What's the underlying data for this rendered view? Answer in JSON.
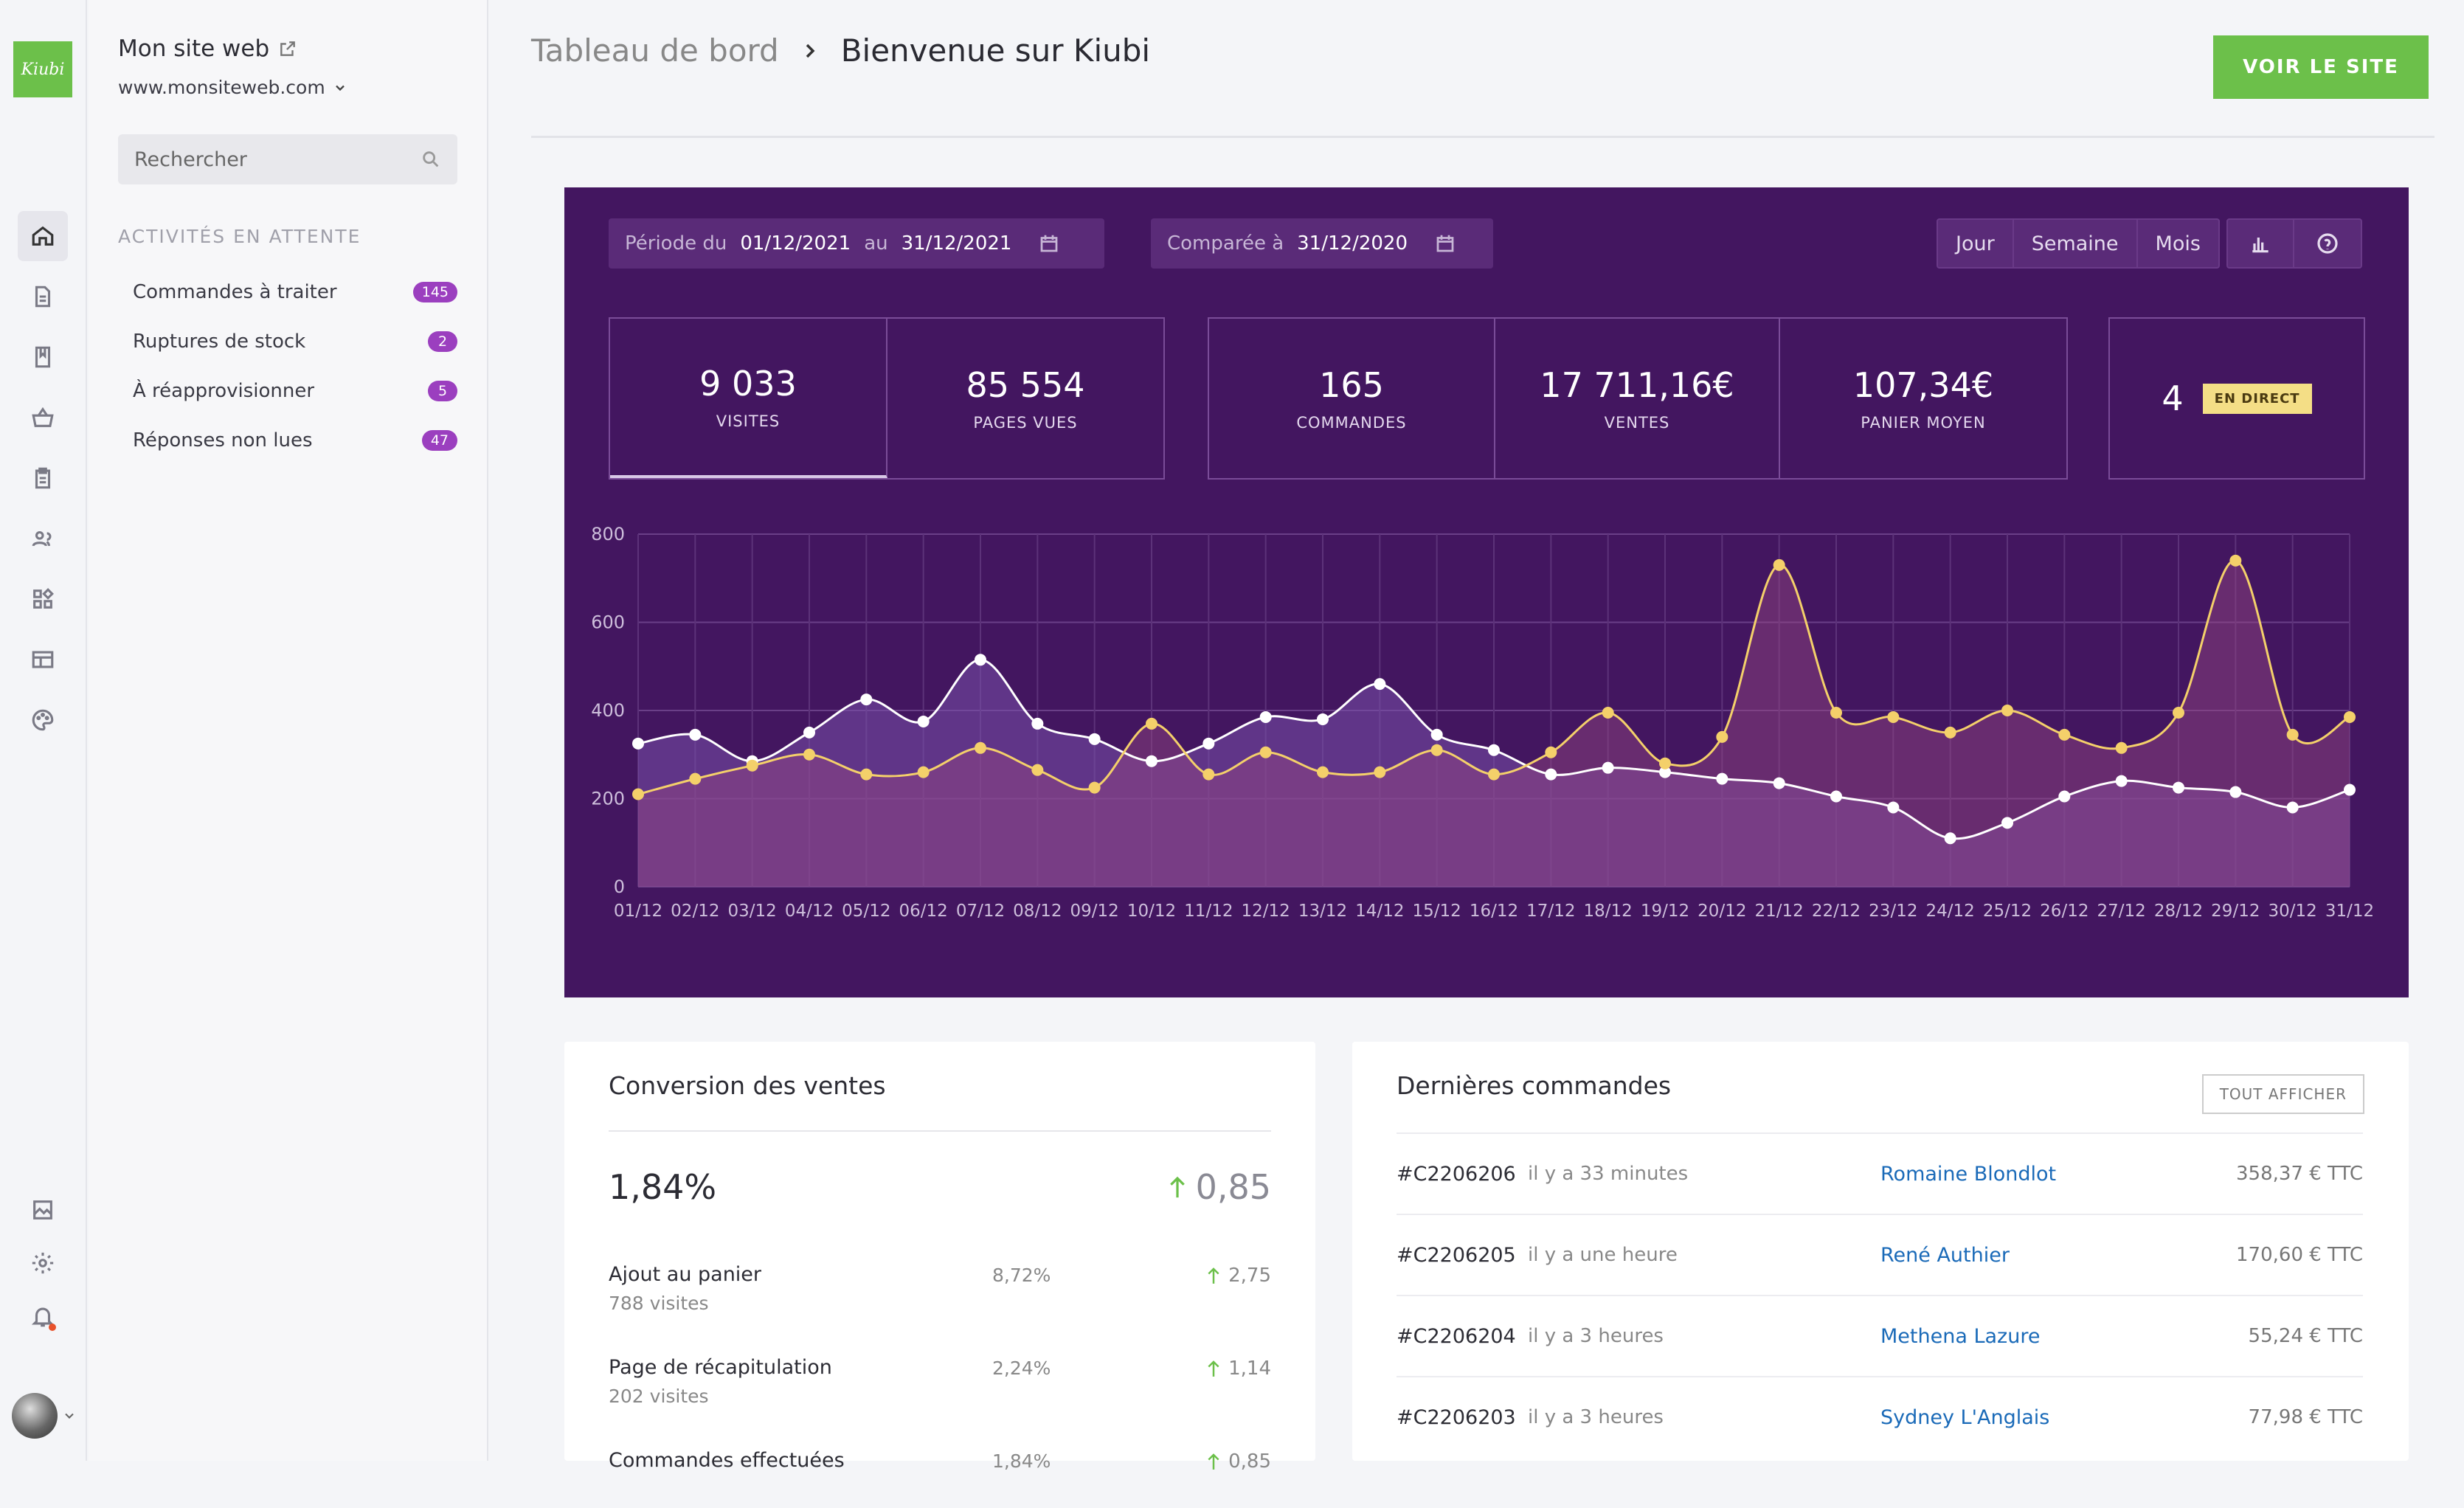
{
  "app": {
    "logo_text": "Kiubi",
    "site_title": "Mon site web",
    "site_url": "www.monsiteweb.com"
  },
  "rail": {
    "icons": [
      "home-icon",
      "document-icon",
      "book-icon",
      "basket-icon",
      "clipboard-icon",
      "users-icon",
      "widgets-icon",
      "layout-icon",
      "palette-icon",
      "media-icon",
      "gear-icon",
      "bell-icon"
    ]
  },
  "search": {
    "placeholder": "Rechercher"
  },
  "pending": {
    "title": "ACTIVITÉS EN ATTENTE",
    "items": [
      {
        "label": "Commandes à traiter",
        "count": "145"
      },
      {
        "label": "Ruptures de stock",
        "count": "2"
      },
      {
        "label": "À réapprovisionner",
        "count": "5"
      },
      {
        "label": "Réponses non lues",
        "count": "47"
      }
    ]
  },
  "breadcrumb": {
    "parent": "Tableau de bord",
    "current": "Bienvenue sur Kiubi"
  },
  "header": {
    "visit_button": "VOIR LE SITE"
  },
  "filters": {
    "period_label": "Période du",
    "period_from": "01/12/2021",
    "to_label": "au",
    "period_to": "31/12/2021",
    "compare_label": "Comparée à",
    "compare_date": "31/12/2020"
  },
  "granularity": [
    "Jour",
    "Semaine",
    "Mois"
  ],
  "kpis": {
    "visits": {
      "value": "9 033",
      "label": "VISITES"
    },
    "pageviews": {
      "value": "85 554",
      "label": "PAGES VUES"
    },
    "orders": {
      "value": "165",
      "label": "COMMANDES"
    },
    "sales": {
      "value": "17 711,16€",
      "label": "VENTES"
    },
    "basket": {
      "value": "107,34€",
      "label": "PANIER MOYEN"
    },
    "live": {
      "value": "4",
      "label": "EN DIRECT"
    }
  },
  "colors": {
    "primary": "#431660",
    "accent": "#6cc04a",
    "badge": "#9b3fbf",
    "series_a": "#ffffff",
    "series_b": "#f4d06a"
  },
  "chart_data": {
    "type": "area",
    "x": [
      "01/12",
      "02/12",
      "03/12",
      "04/12",
      "05/12",
      "06/12",
      "07/12",
      "08/12",
      "09/12",
      "10/12",
      "11/12",
      "12/12",
      "13/12",
      "14/12",
      "15/12",
      "16/12",
      "17/12",
      "18/12",
      "19/12",
      "20/12",
      "21/12",
      "22/12",
      "23/12",
      "24/12",
      "25/12",
      "26/12",
      "27/12",
      "28/12",
      "29/12",
      "30/12",
      "31/12"
    ],
    "yticks": [
      0,
      200,
      400,
      600,
      800
    ],
    "ylim": [
      0,
      800
    ],
    "grid": true,
    "series": [
      {
        "color": "#ffffff",
        "values": [
          325,
          345,
          285,
          350,
          425,
          375,
          515,
          370,
          335,
          285,
          325,
          385,
          380,
          460,
          345,
          310,
          255,
          270,
          260,
          245,
          235,
          205,
          180,
          110,
          145,
          205,
          240,
          225,
          215,
          180,
          220
        ]
      },
      {
        "color": "#f4d06a",
        "values": [
          210,
          245,
          275,
          300,
          255,
          260,
          315,
          265,
          225,
          370,
          255,
          305,
          260,
          260,
          310,
          255,
          305,
          395,
          280,
          340,
          730,
          395,
          385,
          350,
          400,
          345,
          315,
          395,
          740,
          345,
          385
        ]
      }
    ]
  },
  "conversion": {
    "title": "Conversion des ventes",
    "rate": "1,84%",
    "delta": "0,85",
    "rows": [
      {
        "name": "Ajout au panier",
        "sub": "788 visites",
        "pct": "8,72%",
        "delta": "2,75"
      },
      {
        "name": "Page de récapitulation",
        "sub": "202 visites",
        "pct": "2,24%",
        "delta": "1,14"
      },
      {
        "name": "Commandes effectuées",
        "sub": "",
        "pct": "1,84%",
        "delta": "0,85"
      }
    ]
  },
  "orders": {
    "title": "Dernières commandes",
    "all_button": "TOUT AFFICHER",
    "rows": [
      {
        "id": "#C2206206",
        "time": "il y a 33 minutes",
        "customer": "Romaine Blondlot",
        "amount": "358,37 € TTC"
      },
      {
        "id": "#C2206205",
        "time": "il y a une heure",
        "customer": "René Authier",
        "amount": "170,60 € TTC"
      },
      {
        "id": "#C2206204",
        "time": "il y a 3 heures",
        "customer": "Methena Lazure",
        "amount": "55,24 € TTC"
      },
      {
        "id": "#C2206203",
        "time": "il y a 3 heures",
        "customer": "Sydney L'Anglais",
        "amount": "77,98 € TTC"
      }
    ]
  }
}
